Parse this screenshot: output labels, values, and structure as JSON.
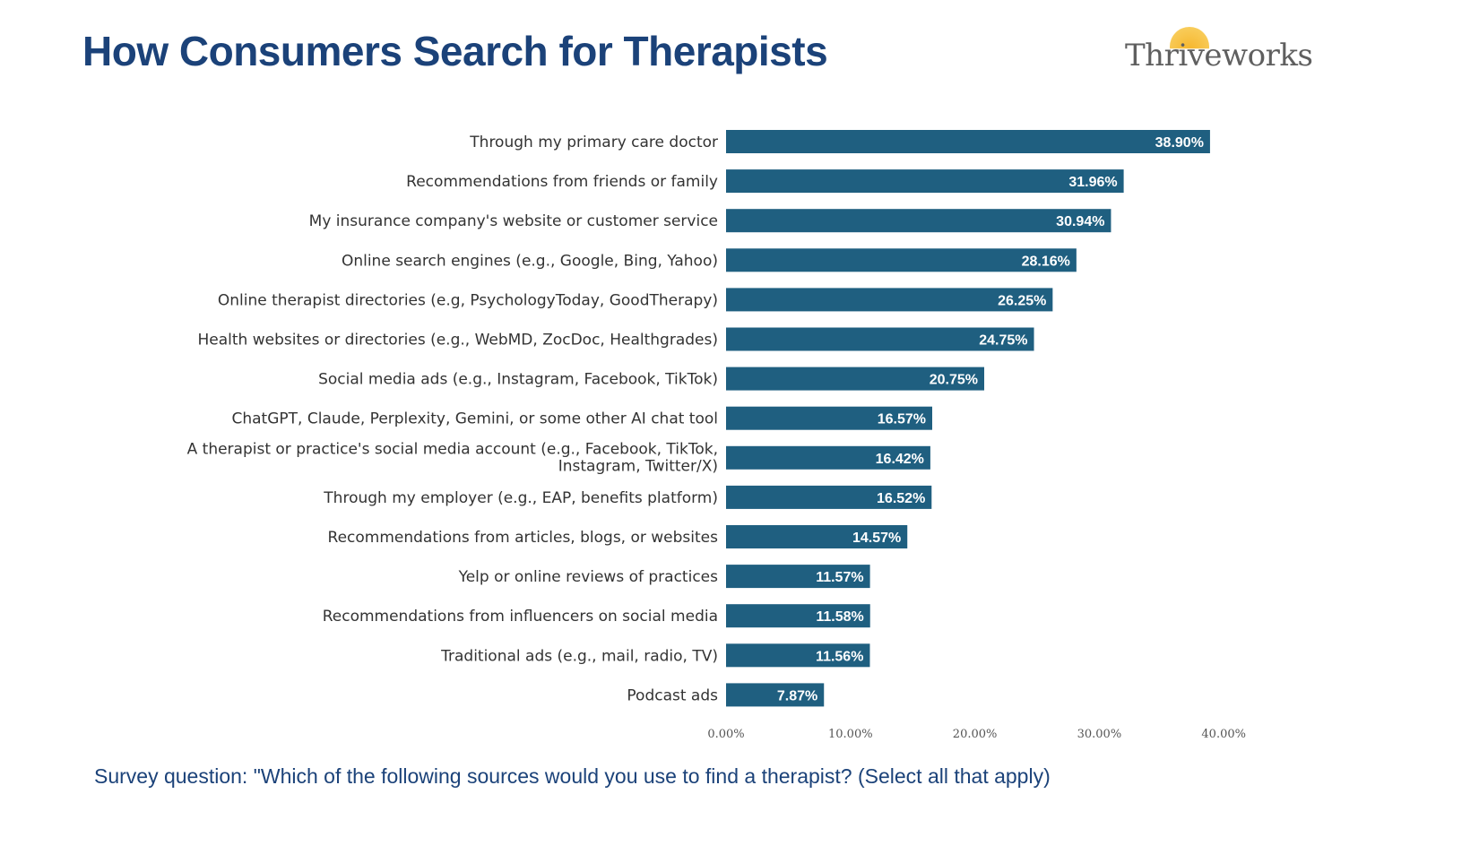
{
  "header": {
    "title": "How Consumers Search for Therapists",
    "logo_text": "Thriveworks"
  },
  "footer": {
    "survey_question": "Survey question:  \"Which of the following sources would you use to find a therapist? (Select all that apply)"
  },
  "colors": {
    "bar": "#1f5f80",
    "title": "#1b4279",
    "label": "#333333"
  },
  "chart_data": {
    "type": "bar",
    "orientation": "horizontal",
    "title": "How Consumers Search for Therapists",
    "xlabel": "",
    "ylabel": "",
    "xlim": [
      0,
      40
    ],
    "xticks": [
      "0.00%",
      "10.00%",
      "20.00%",
      "30.00%",
      "40.00%"
    ],
    "grid": false,
    "categories": [
      "Through my primary care doctor",
      "Recommendations from friends or family",
      "My insurance company's website or customer service",
      "Online search engines (e.g., Google, Bing, Yahoo)",
      "Online therapist directories (e.g, PsychologyToday, GoodTherapy)",
      "Health websites or directories (e.g., WebMD, ZocDoc, Healthgrades)",
      "Social media ads (e.g., Instagram, Facebook, TikTok)",
      "ChatGPT, Claude, Perplexity, Gemini, or some other AI chat tool",
      "A therapist or practice's social media account (e.g., Facebook, TikTok,|Instagram, Twitter/X)",
      "Through my employer (e.g., EAP, benefits platform)",
      "Recommendations from articles, blogs, or websites",
      "Yelp or online reviews of practices",
      "Recommendations from influencers on social media",
      "Traditional ads (e.g., mail, radio, TV)",
      "Podcast ads"
    ],
    "values": [
      38.9,
      31.96,
      30.94,
      28.16,
      26.25,
      24.75,
      20.75,
      16.57,
      16.42,
      16.52,
      14.57,
      11.57,
      11.58,
      11.56,
      7.87
    ],
    "value_labels": [
      "38.90%",
      "31.96%",
      "30.94%",
      "28.16%",
      "26.25%",
      "24.75%",
      "20.75%",
      "16.57%",
      "16.42%",
      "16.52%",
      "14.57%",
      "11.57%",
      "11.58%",
      "11.56%",
      "7.87%"
    ]
  }
}
